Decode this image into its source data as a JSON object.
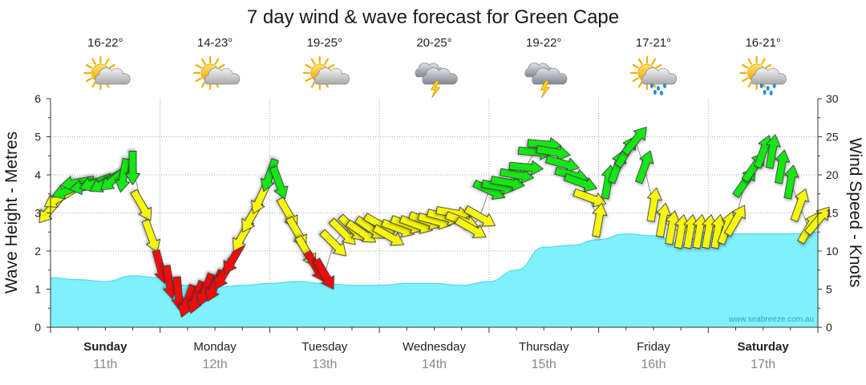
{
  "chart_data": {
    "type": "line",
    "title": "7 day wind & wave forecast for Green Cape",
    "left_axis": {
      "label": "Wave Height - Metres",
      "ylim": [
        0,
        6
      ],
      "ticks": [
        "0",
        "1",
        "2",
        "3",
        "4",
        "5",
        "6"
      ]
    },
    "right_axis": {
      "label": "Wind Speed - Knots",
      "ylim": [
        0,
        30
      ],
      "ticks": [
        "0",
        "5",
        "10",
        "15",
        "20",
        "25",
        "30"
      ]
    },
    "grid": true,
    "watermark": "www.seabreeze.com.au",
    "days": [
      {
        "name": "Sunday",
        "date": "11th",
        "bold": true,
        "temp": "16-22°",
        "icon": "partly-cloudy-sun-icon"
      },
      {
        "name": "Monday",
        "date": "12th",
        "bold": false,
        "temp": "14-23°",
        "icon": "partly-cloudy-sun-icon"
      },
      {
        "name": "Tuesday",
        "date": "13th",
        "bold": false,
        "temp": "19-25°",
        "icon": "partly-cloudy-sun-icon"
      },
      {
        "name": "Wednesday",
        "date": "14th",
        "bold": false,
        "temp": "20-25°",
        "icon": "thunderstorm-icon"
      },
      {
        "name": "Thursday",
        "date": "15th",
        "bold": false,
        "temp": "19-22°",
        "icon": "thunderstorm-icon"
      },
      {
        "name": "Friday",
        "date": "16th",
        "bold": false,
        "temp": "17-21°",
        "icon": "sun-rain-icon"
      },
      {
        "name": "Saturday",
        "date": "17th",
        "bold": true,
        "temp": "16-21°",
        "icon": "sun-rain-icon"
      }
    ],
    "colors": {
      "wave_fill": "#7ff1fb",
      "wave_line": "#56d8ea",
      "wind_green": "#14e614",
      "wind_yellow": "#f7f70a",
      "wind_red": "#ee1111"
    },
    "wave_height": {
      "unit": "m",
      "x_hours": [
        0,
        6,
        12,
        18,
        24,
        30,
        36,
        42,
        48,
        54,
        60,
        66,
        72,
        78,
        84,
        90,
        96,
        102,
        108,
        114,
        120,
        126,
        132,
        138,
        144,
        150,
        156,
        162,
        168
      ],
      "values": [
        1.3,
        1.25,
        1.2,
        1.35,
        1.3,
        1.1,
        1.05,
        1.1,
        1.15,
        1.2,
        1.15,
        1.1,
        1.1,
        1.15,
        1.15,
        1.1,
        1.2,
        1.5,
        2.1,
        2.15,
        2.3,
        2.45,
        2.4,
        2.2,
        2.5,
        2.45,
        2.45,
        2.45,
        2.5
      ]
    },
    "wind": {
      "unit": "knots",
      "x_hours": [
        0,
        2,
        4,
        6,
        8,
        10,
        12,
        14,
        16,
        18,
        20,
        22,
        24,
        26,
        28,
        30,
        32,
        34,
        36,
        38,
        40,
        42,
        44,
        46,
        48,
        50,
        52,
        54,
        56,
        58,
        60,
        62,
        64,
        66,
        68,
        70,
        72,
        74,
        76,
        78,
        80,
        82,
        84,
        86,
        88,
        90,
        92,
        94,
        96,
        98,
        100,
        102,
        104,
        106,
        108,
        110,
        112,
        114,
        116,
        118,
        120,
        122,
        124,
        126,
        128,
        130,
        132,
        134,
        136,
        138,
        140,
        142,
        144,
        146,
        148,
        150,
        152,
        154,
        156,
        158,
        160,
        162,
        164,
        166,
        168
      ],
      "speed": [
        15.5,
        17,
        18,
        19,
        18.5,
        19,
        19,
        19.5,
        20,
        21,
        16,
        12,
        8,
        6,
        4.5,
        3.5,
        4,
        5,
        5.5,
        7,
        9,
        12,
        14.5,
        17,
        20,
        19,
        15,
        12.5,
        10,
        8,
        7,
        11,
        12.5,
        13,
        12.5,
        13,
        13.5,
        12,
        13,
        13.5,
        13.5,
        14,
        14,
        14.5,
        15,
        14,
        13,
        14.5,
        18,
        18.5,
        19,
        20,
        21,
        23,
        24,
        23,
        21.5,
        20,
        19,
        17,
        14,
        19,
        21,
        23,
        24.5,
        21,
        16,
        14,
        13,
        12.5,
        12.5,
        12.5,
        12.5,
        12.5,
        13,
        14,
        19,
        21,
        23,
        23,
        21,
        19,
        16,
        13,
        14
      ],
      "direction_deg": [
        40,
        60,
        70,
        80,
        80,
        70,
        60,
        50,
        10,
        0,
        330,
        340,
        345,
        350,
        355,
        20,
        20,
        20,
        25,
        30,
        30,
        30,
        30,
        25,
        20,
        340,
        330,
        330,
        330,
        330,
        330,
        315,
        315,
        315,
        305,
        305,
        300,
        300,
        290,
        290,
        290,
        290,
        285,
        285,
        280,
        290,
        300,
        300,
        295,
        280,
        280,
        280,
        275,
        275,
        275,
        280,
        285,
        285,
        290,
        290,
        190,
        190,
        200,
        210,
        220,
        200,
        190,
        190,
        190,
        190,
        190,
        190,
        190,
        190,
        200,
        210,
        215,
        215,
        200,
        190,
        190,
        190,
        200,
        210,
        220
      ]
    }
  }
}
